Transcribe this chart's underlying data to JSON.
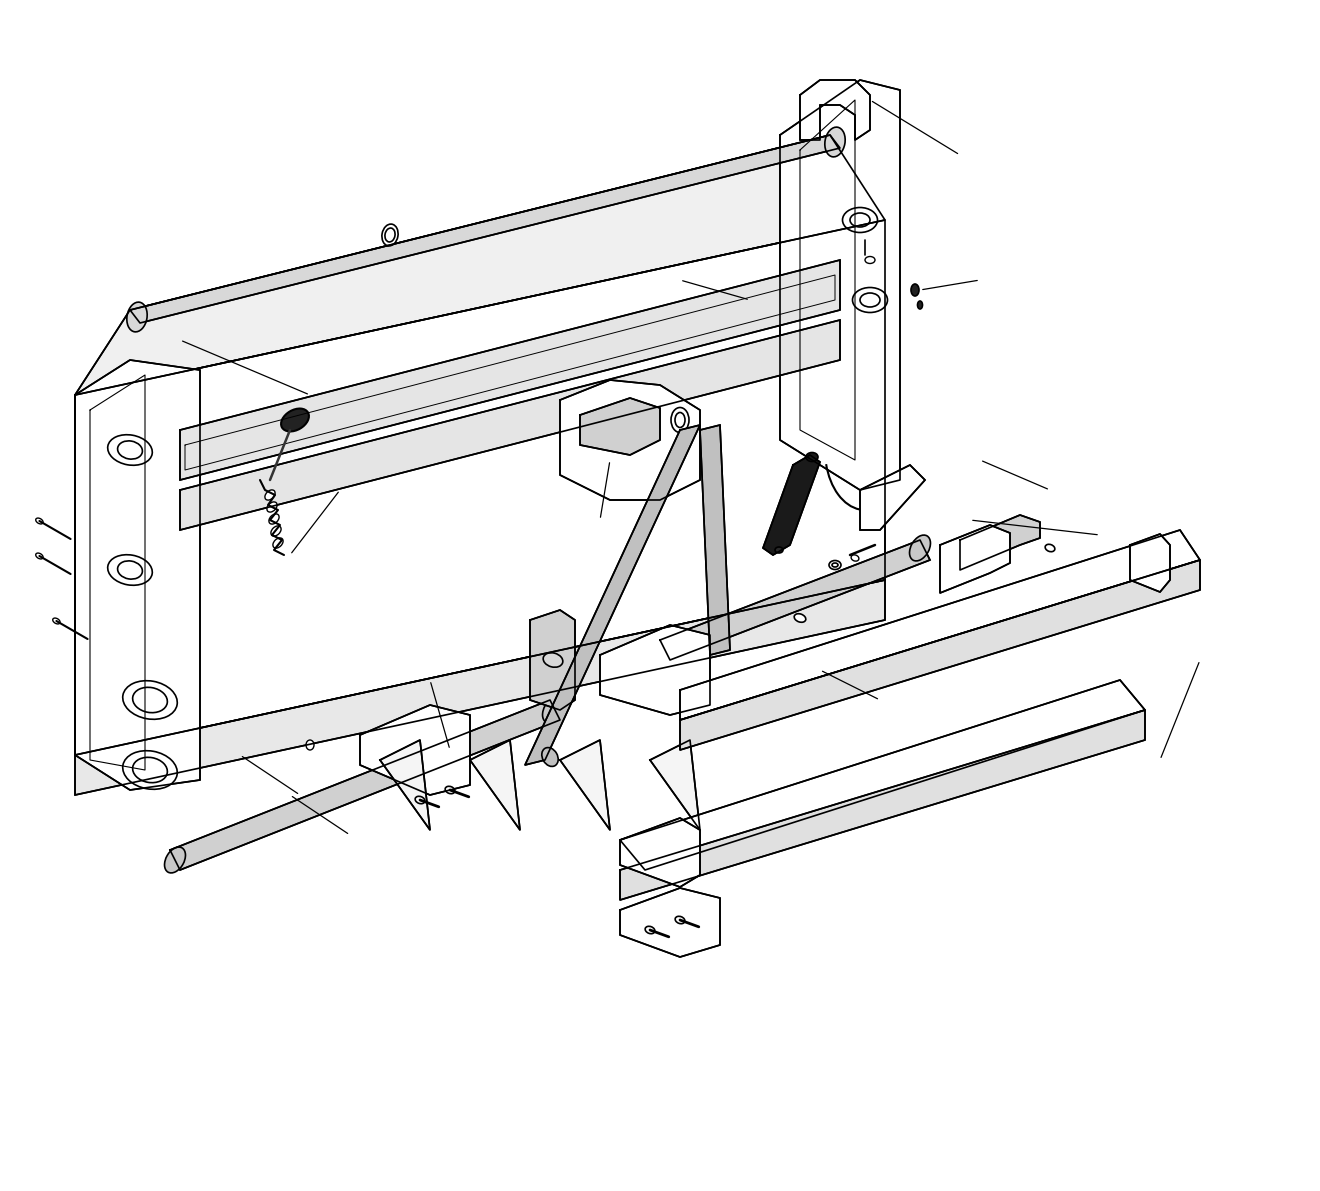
{
  "background_color": "#ffffff",
  "line_color": "#000000",
  "line_width": 1.2,
  "fig_width": 13.2,
  "fig_height": 11.91
}
